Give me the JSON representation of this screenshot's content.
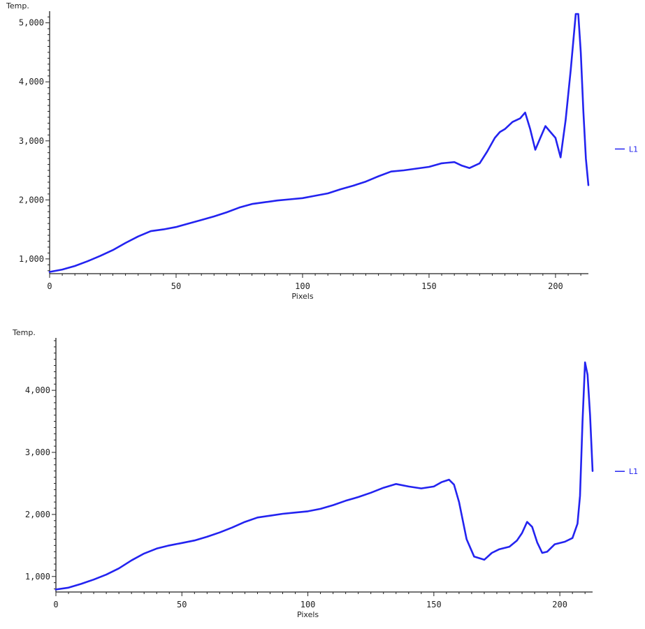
{
  "colors": {
    "line": "#2323f0",
    "axis": "#222222",
    "background": "#ffffff"
  },
  "chart_data": [
    {
      "type": "line",
      "xlabel": "Pixels",
      "ylabel": "Temp.",
      "xlim": [
        0,
        213
      ],
      "ylim": [
        750,
        5150
      ],
      "xticks": [
        0,
        50,
        100,
        150,
        200
      ],
      "xtick_labels": [
        "0",
        "50",
        "100",
        "150",
        "200"
      ],
      "yticks": [
        1000,
        2000,
        3000,
        4000,
        5000
      ],
      "ytick_labels": [
        "1,000",
        "2,000",
        "3,000",
        "4,000",
        "5,000"
      ],
      "legend": {
        "position": "right",
        "entries": [
          "L1"
        ]
      },
      "grid": false,
      "series": [
        {
          "name": "L1",
          "x": [
            0,
            5,
            10,
            15,
            20,
            25,
            30,
            35,
            40,
            45,
            50,
            55,
            60,
            65,
            70,
            75,
            80,
            85,
            90,
            95,
            100,
            105,
            110,
            115,
            120,
            125,
            130,
            135,
            140,
            145,
            150,
            155,
            160,
            163,
            166,
            170,
            173,
            176,
            178,
            180,
            183,
            186,
            188,
            190,
            192,
            194,
            196,
            198,
            200,
            202,
            204,
            206,
            208,
            209,
            210,
            211,
            212,
            213
          ],
          "y": [
            780,
            820,
            880,
            960,
            1050,
            1150,
            1270,
            1380,
            1470,
            1500,
            1540,
            1600,
            1660,
            1720,
            1790,
            1870,
            1930,
            1960,
            1990,
            2010,
            2030,
            2070,
            2110,
            2180,
            2240,
            2310,
            2400,
            2480,
            2500,
            2530,
            2560,
            2620,
            2640,
            2580,
            2540,
            2620,
            2820,
            3050,
            3150,
            3200,
            3320,
            3380,
            3480,
            3200,
            2850,
            3050,
            3250,
            3150,
            3050,
            2720,
            3350,
            4200,
            5150,
            5150,
            4500,
            3500,
            2700,
            2250
          ]
        }
      ]
    },
    {
      "type": "line",
      "xlabel": "Pixels",
      "ylabel": "Temp.",
      "xlim": [
        0,
        213
      ],
      "ylim": [
        750,
        4800
      ],
      "xticks": [
        0,
        50,
        100,
        150,
        200
      ],
      "xtick_labels": [
        "0",
        "50",
        "100",
        "150",
        "200"
      ],
      "yticks": [
        1000,
        2000,
        3000,
        4000
      ],
      "ytick_labels": [
        "1,000",
        "2,000",
        "3,000",
        "4,000"
      ],
      "legend": {
        "position": "right",
        "entries": [
          "L1"
        ]
      },
      "grid": false,
      "series": [
        {
          "name": "L1",
          "x": [
            0,
            5,
            10,
            15,
            20,
            25,
            30,
            35,
            40,
            45,
            50,
            55,
            60,
            65,
            70,
            75,
            80,
            85,
            90,
            95,
            100,
            105,
            110,
            115,
            120,
            125,
            130,
            135,
            140,
            145,
            150,
            153,
            156,
            158,
            160,
            163,
            166,
            170,
            173,
            176,
            180,
            183,
            185,
            187,
            189,
            191,
            193,
            195,
            198,
            202,
            205,
            207,
            208,
            209,
            210,
            211,
            212,
            213
          ],
          "y": [
            790,
            820,
            880,
            950,
            1030,
            1130,
            1260,
            1370,
            1450,
            1500,
            1540,
            1580,
            1640,
            1710,
            1790,
            1880,
            1950,
            1980,
            2010,
            2030,
            2050,
            2090,
            2150,
            2220,
            2280,
            2350,
            2430,
            2490,
            2450,
            2420,
            2450,
            2520,
            2560,
            2480,
            2200,
            1600,
            1320,
            1270,
            1380,
            1440,
            1480,
            1580,
            1700,
            1880,
            1800,
            1550,
            1380,
            1400,
            1520,
            1560,
            1620,
            1850,
            2300,
            3500,
            4450,
            4250,
            3600,
            2700
          ]
        }
      ]
    }
  ]
}
